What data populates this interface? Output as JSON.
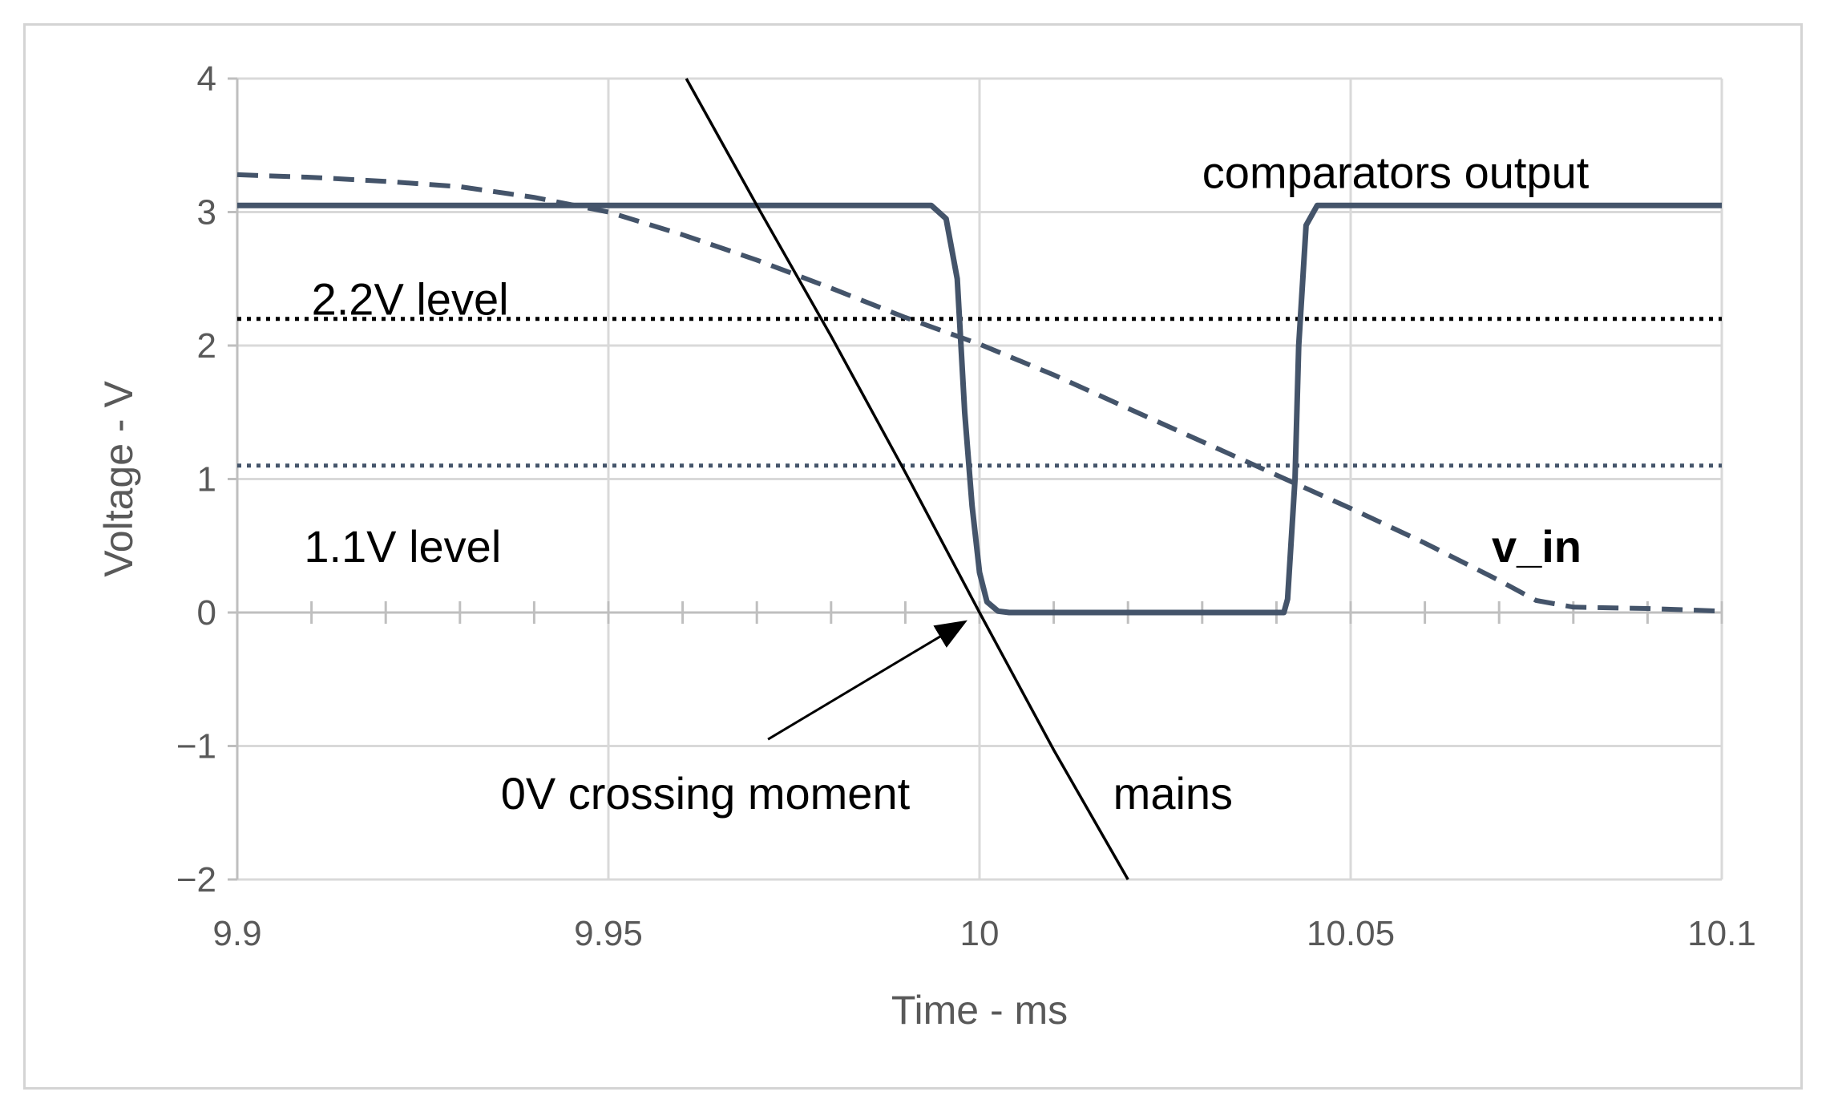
{
  "chart_data": {
    "type": "line",
    "title": "",
    "xlabel": "Time - ms",
    "ylabel": "Voltage - V",
    "xlim": [
      9.9,
      10.1
    ],
    "ylim": [
      -2,
      4
    ],
    "grid": true,
    "x_ticks": [
      9.9,
      9.95,
      10,
      10.05,
      10.1
    ],
    "x_tick_labels": [
      "9.9",
      "9.95",
      "10",
      "10.05",
      "10.1"
    ],
    "x_minor_step": 0.01,
    "y_ticks": [
      -2,
      -1,
      0,
      1,
      2,
      3,
      4
    ],
    "y_tick_labels": [
      "−2",
      "−1",
      "0",
      "1",
      "2",
      "3",
      "4"
    ],
    "series": [
      {
        "name": "mains",
        "style": "solid-thin",
        "color": "#000000",
        "x": [
          9.9605,
          9.97,
          9.98,
          9.99,
          10.0,
          10.01,
          10.02
        ],
        "y": [
          4.0,
          3.05,
          2.07,
          1.05,
          0.0,
          -1.03,
          -2.0
        ]
      },
      {
        "name": "comparators output",
        "style": "solid-thick",
        "color": "#44546a",
        "x": [
          9.9,
          9.9935,
          9.9955,
          9.997,
          9.998,
          9.999,
          10.0,
          10.001,
          10.0025,
          10.004,
          10.041,
          10.0415,
          10.0425,
          10.043,
          10.044,
          10.0455,
          10.1
        ],
        "y": [
          3.05,
          3.05,
          2.95,
          2.5,
          1.5,
          0.8,
          0.3,
          0.08,
          0.01,
          0.0,
          0.0,
          0.1,
          1.0,
          2.0,
          2.9,
          3.05,
          3.05
        ]
      },
      {
        "name": "v_in",
        "style": "dashed",
        "color": "#44546a",
        "x": [
          9.9,
          9.91,
          9.92,
          9.93,
          9.94,
          9.95,
          9.96,
          9.97,
          9.98,
          9.99,
          10.0,
          10.01,
          10.02,
          10.03,
          10.04,
          10.05,
          10.06,
          10.07,
          10.075,
          10.08,
          10.09,
          10.1
        ],
        "y": [
          3.28,
          3.26,
          3.23,
          3.19,
          3.11,
          3.0,
          2.83,
          2.64,
          2.43,
          2.21,
          2.01,
          1.78,
          1.53,
          1.28,
          1.03,
          0.78,
          0.52,
          0.24,
          0.09,
          0.04,
          0.03,
          0.01
        ]
      },
      {
        "name": "2.2V level",
        "style": "dotted-black",
        "color": "#000000",
        "x": [
          9.9,
          10.1
        ],
        "y": [
          2.2,
          2.2
        ]
      },
      {
        "name": "1.1V level",
        "style": "dotted-blue",
        "color": "#44546a",
        "x": [
          9.9,
          10.1
        ],
        "y": [
          1.1,
          1.1
        ]
      }
    ],
    "annotations": [
      {
        "id": "comparators",
        "text": "comparators output",
        "x": 10.03,
        "y": 3.3,
        "anchor": "start",
        "bold": false
      },
      {
        "id": "level22",
        "text": "2.2V level",
        "x": 9.91,
        "y": 2.35,
        "anchor": "start",
        "bold": false
      },
      {
        "id": "level11",
        "text": "1.1V level",
        "x": 9.909,
        "y": 0.5,
        "anchor": "start",
        "bold": false
      },
      {
        "id": "vin",
        "text": "v_in",
        "x": 10.069,
        "y": 0.5,
        "anchor": "start",
        "bold": true
      },
      {
        "id": "crossing",
        "text": "0V crossing moment",
        "x": 9.9355,
        "y": -1.35,
        "anchor": "start",
        "bold": false
      },
      {
        "id": "mains",
        "text": "mains",
        "x": 10.018,
        "y": -1.35,
        "anchor": "start",
        "bold": false
      }
    ],
    "arrow": {
      "from_x": 9.9715,
      "from_y": -0.95,
      "to_x": 9.998,
      "to_y": -0.07
    }
  }
}
